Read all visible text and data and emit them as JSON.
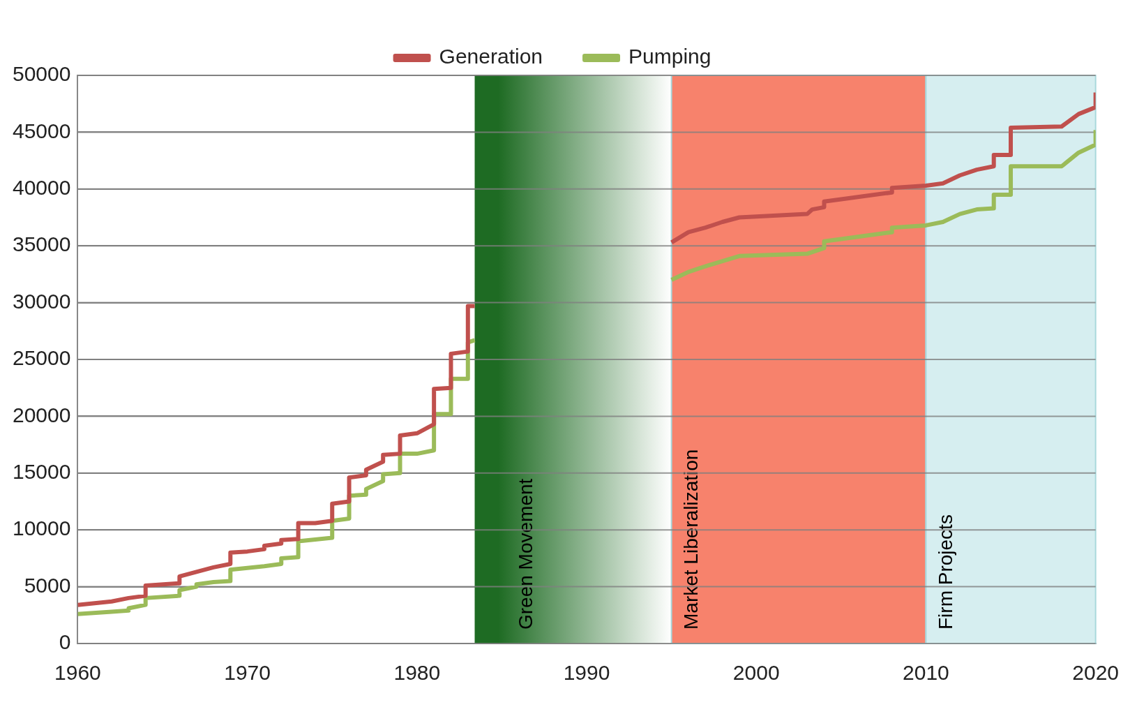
{
  "chart_data": {
    "type": "line",
    "legend": "top",
    "grid": "y",
    "marker": "none",
    "line_style": "solid",
    "xlim": [
      1960,
      2020
    ],
    "xticks": [
      1960,
      1970,
      1980,
      1990,
      2000,
      2010,
      2020
    ],
    "ylim": [
      0,
      50000
    ],
    "yticks": [
      0,
      5000,
      10000,
      15000,
      20000,
      25000,
      30000,
      35000,
      40000,
      45000,
      50000
    ],
    "series": [
      {
        "name": "Generation",
        "color": "#c0504d",
        "x": [
          1960,
          1962,
          1963,
          1963,
          1964,
          1964,
          1966,
          1966,
          1967,
          1968,
          1969,
          1969,
          1970,
          1971,
          1971,
          1972,
          1972,
          1973,
          1973,
          1974,
          1975,
          1975,
          1976,
          1976,
          1977,
          1977,
          1978,
          1978,
          1979,
          1979,
          1980,
          1981,
          1981,
          1982,
          1982,
          1983,
          1983,
          1983.4,
          1990,
          1995,
          1996,
          1997,
          1998,
          1999,
          2003,
          2003.3,
          2004,
          2004,
          2005,
          2008,
          2008,
          2010,
          2011,
          2012,
          2013,
          2014,
          2014,
          2015,
          2015,
          2018,
          2019,
          2020,
          2020
        ],
        "values": [
          3400,
          3700,
          4000,
          4000,
          4200,
          5100,
          5300,
          5900,
          6300,
          6700,
          7000,
          8000,
          8100,
          8300,
          8600,
          8800,
          9100,
          9200,
          10600,
          10600,
          10800,
          12300,
          12500,
          14600,
          14800,
          15300,
          16000,
          16600,
          16700,
          18300,
          18500,
          19300,
          22400,
          22500,
          25500,
          25700,
          29700,
          29700,
          null,
          35300,
          36200,
          36600,
          37100,
          37500,
          37800,
          38200,
          38400,
          38900,
          39100,
          39700,
          40100,
          40300,
          40500,
          41200,
          41700,
          42000,
          43000,
          43000,
          45400,
          45500,
          46600,
          47200,
          48500
        ]
      },
      {
        "name": "Pumping",
        "color": "#9bbb59",
        "x": [
          1960,
          1962,
          1963,
          1963,
          1964,
          1964,
          1966,
          1966,
          1967,
          1967,
          1968,
          1969,
          1969,
          1971,
          1972,
          1972,
          1973,
          1973,
          1975,
          1975,
          1976,
          1976,
          1977,
          1977,
          1978,
          1978,
          1979,
          1979,
          1980,
          1981,
          1981,
          1982,
          1982,
          1983,
          1983,
          1983.4,
          1990,
          1995,
          1996,
          1997,
          1999,
          2003,
          2004,
          2004,
          2005,
          2008,
          2008,
          2010,
          2011,
          2012,
          2013,
          2014,
          2014,
          2015,
          2015,
          2018,
          2019,
          2020,
          2020
        ],
        "values": [
          2600,
          2800,
          2900,
          3100,
          3400,
          4000,
          4200,
          4700,
          5000,
          5200,
          5400,
          5500,
          6500,
          6800,
          7000,
          7500,
          7600,
          9000,
          9300,
          10800,
          11000,
          13000,
          13100,
          13600,
          14300,
          14900,
          15000,
          16700,
          16700,
          17000,
          20200,
          20200,
          23300,
          23300,
          26500,
          26700,
          null,
          32000,
          32700,
          33200,
          34100,
          34300,
          34800,
          35400,
          35600,
          36200,
          36600,
          36800,
          37100,
          37800,
          38200,
          38300,
          39500,
          39500,
          42000,
          42000,
          43200,
          43900,
          45200
        ]
      }
    ],
    "bands": [
      {
        "axis": "x",
        "from": 1983.4,
        "to": 1995,
        "label": "Green Movement",
        "color": "#1e6b23"
      },
      {
        "axis": "x",
        "from": 1995,
        "to": 2010,
        "label": "Market Liberalization",
        "color": "#f7826c"
      },
      {
        "axis": "x",
        "from": 2010,
        "to": 2020,
        "label": "Firm Projects",
        "color": "#d6eef0"
      }
    ]
  }
}
